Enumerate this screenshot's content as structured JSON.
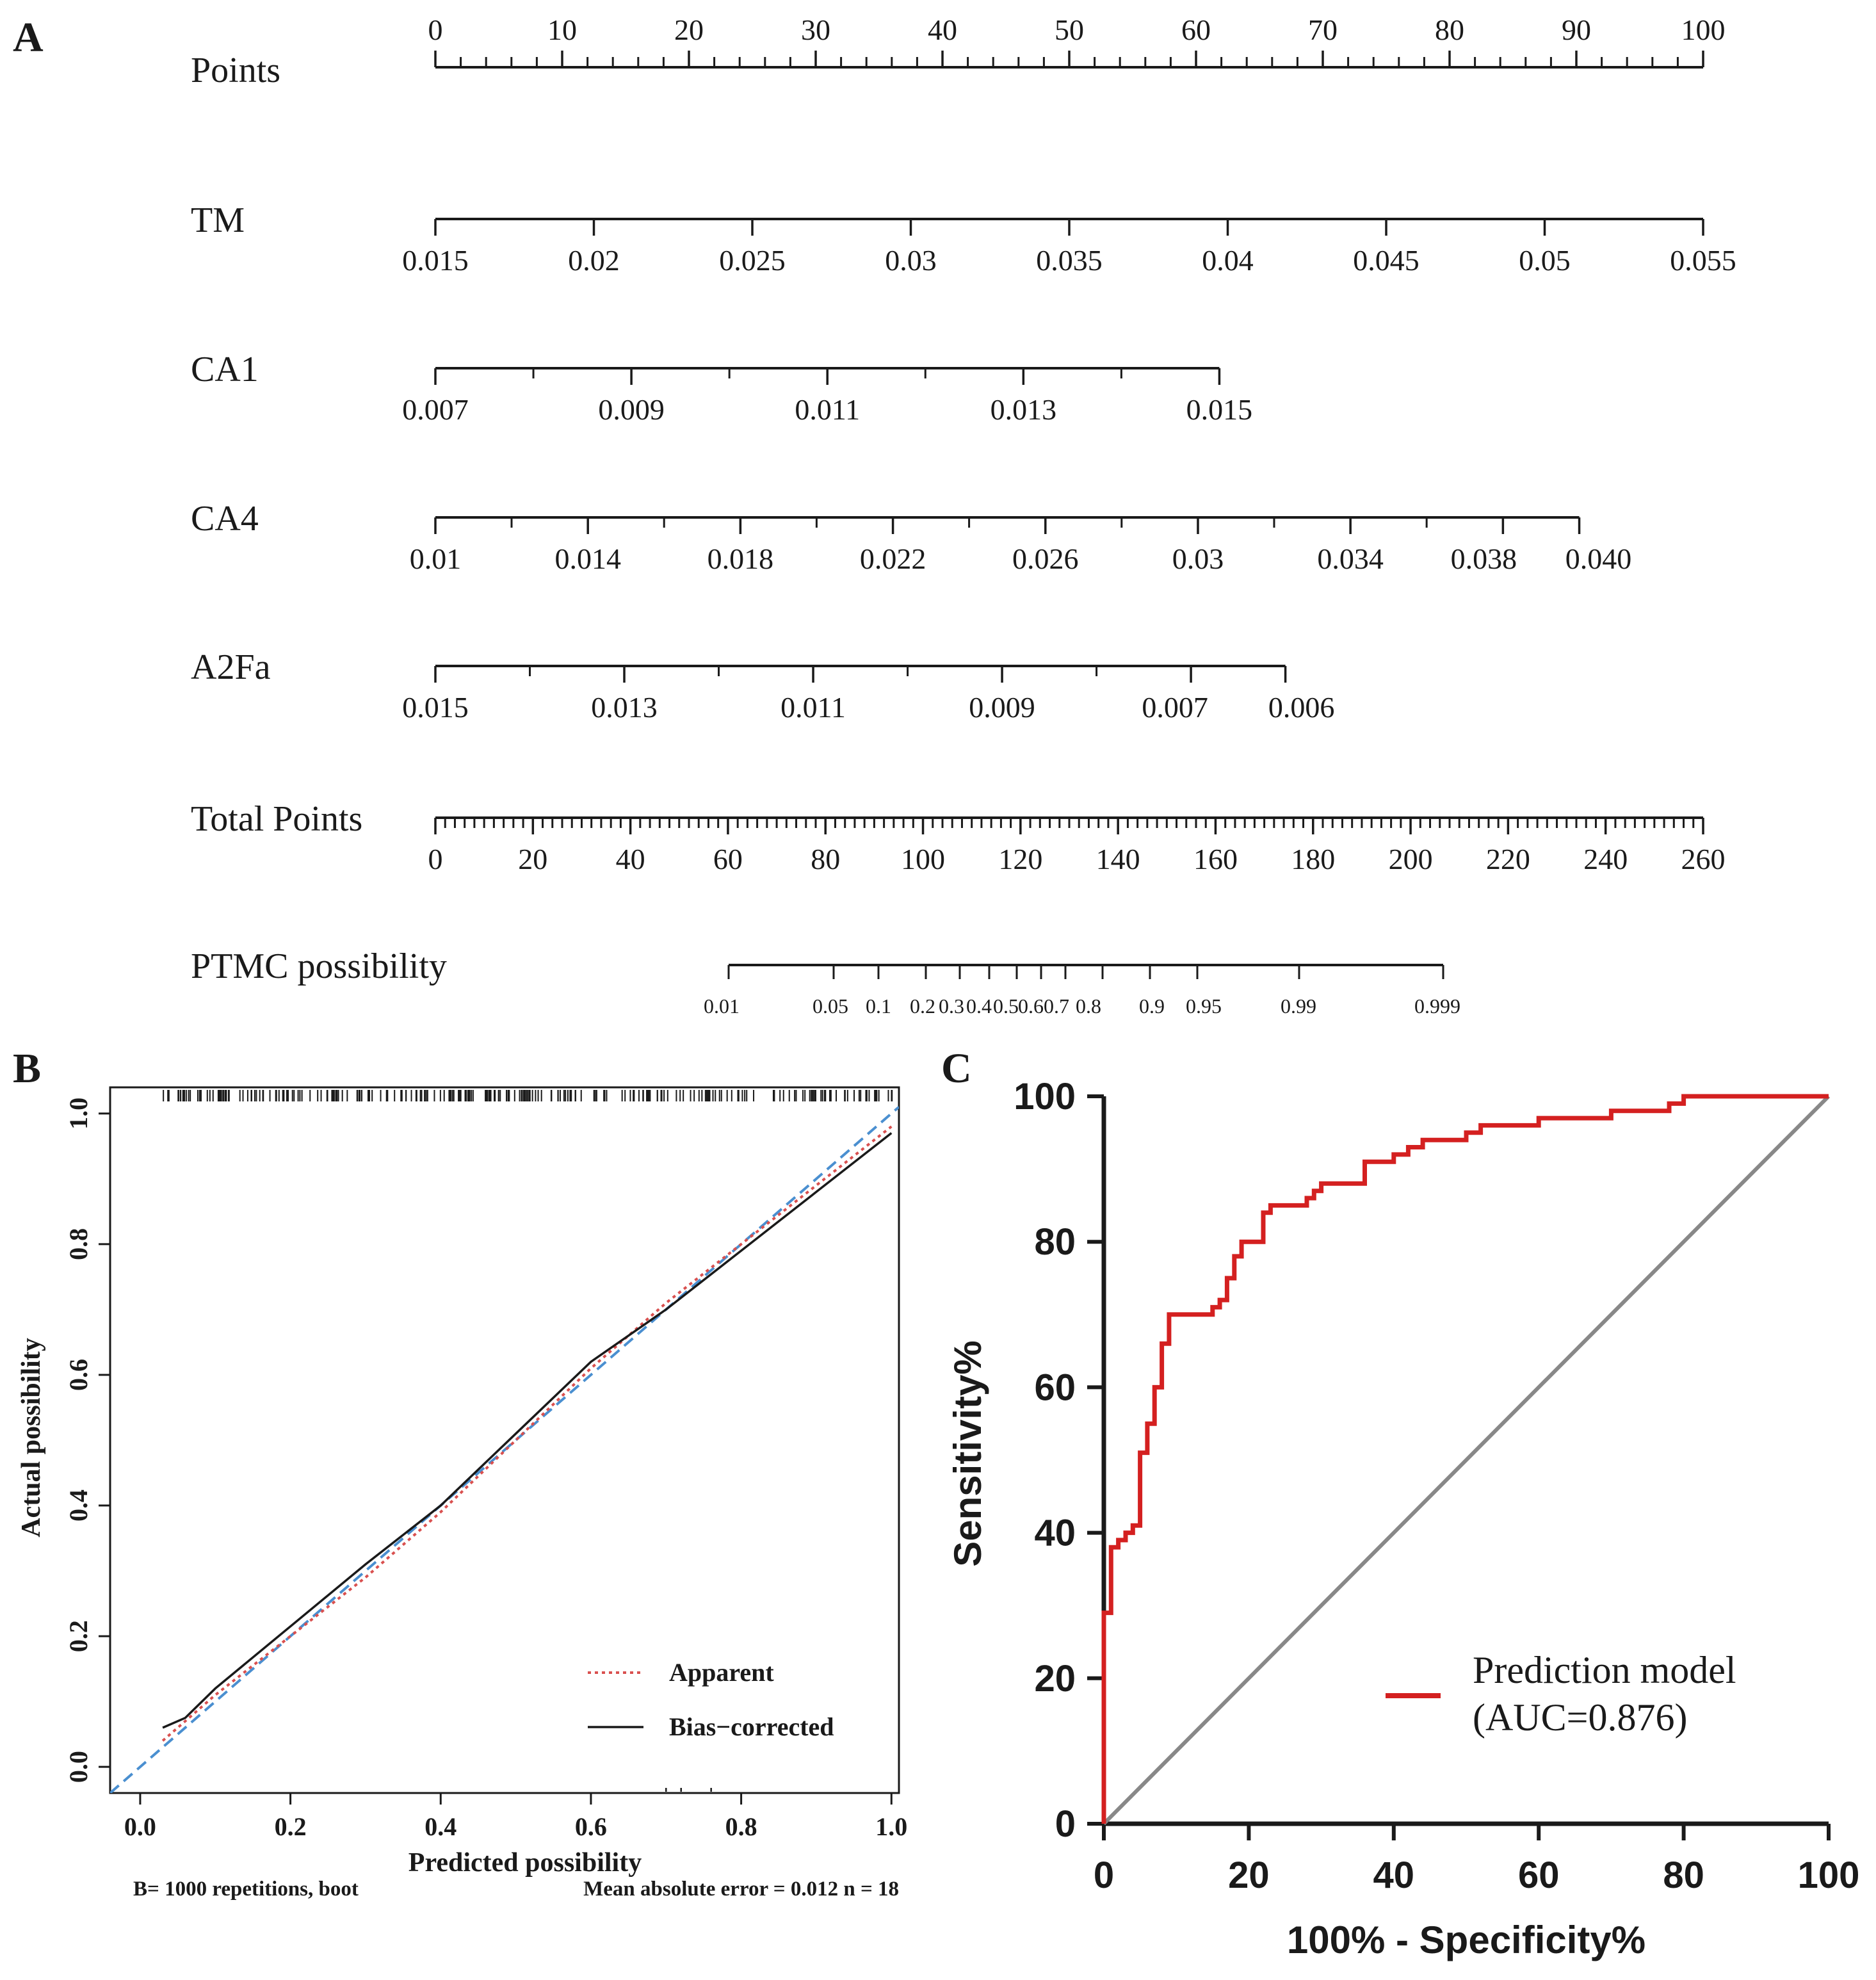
{
  "colors": {
    "ink": "#1a1a1a",
    "roc_line": "#d42020",
    "reference_line": "#888888",
    "apparent": "#d9504f",
    "ideal": "#4a8fd0"
  },
  "panel_labels": {
    "a": "A",
    "b": "B",
    "c": "C"
  },
  "chart_data": [
    {
      "type": "nomogram",
      "panel": "A",
      "scales": [
        {
          "name": "Points",
          "min": 0,
          "max": 100,
          "labels": [
            "0",
            "10",
            "20",
            "30",
            "40",
            "50",
            "60",
            "70",
            "80",
            "90",
            "100"
          ]
        },
        {
          "name": "TM",
          "labels": [
            "0.015",
            "0.02",
            "0.025",
            "0.03",
            "0.035",
            "0.04",
            "0.045",
            "0.05",
            "0.055"
          ]
        },
        {
          "name": "CA1",
          "labels": [
            "0.007",
            "0.009",
            "0.011",
            "0.013",
            "0.015"
          ]
        },
        {
          "name": "CA4",
          "labels": [
            "0.01",
            "0.014",
            "0.018",
            "0.022",
            "0.026",
            "0.03",
            "0.034",
            "0.038",
            "0.040"
          ]
        },
        {
          "name": "A2Fa",
          "labels": [
            "0.015",
            "0.013",
            "0.011",
            "0.009",
            "0.007",
            "0.006"
          ]
        },
        {
          "name": "Total Points",
          "min": 0,
          "max": 260,
          "labels": [
            "0",
            "20",
            "40",
            "60",
            "80",
            "100",
            "120",
            "140",
            "160",
            "180",
            "200",
            "220",
            "240",
            "260"
          ]
        },
        {
          "name": "PTMC possibility",
          "labels": [
            "0.01",
            "0.05",
            "0.1",
            "0.2",
            "0.3",
            "0.4",
            "0.5",
            "0.6",
            "0.7",
            "0.8",
            "0.9",
            "0.95",
            "0.99",
            "0.999"
          ]
        }
      ]
    },
    {
      "type": "line",
      "panel": "B",
      "xlabel": "Predicted possibility",
      "ylabel": "Actual possibility",
      "xlim": [
        -0.04,
        1.01
      ],
      "ylim": [
        -0.04,
        1.04
      ],
      "x_ticks": [
        "0.0",
        "0.2",
        "0.4",
        "0.6",
        "0.8",
        "1.0"
      ],
      "y_ticks": [
        "0.0",
        "0.2",
        "0.4",
        "0.6",
        "0.8",
        "1.0"
      ],
      "legend": [
        "Apparent",
        "Bias−corrected"
      ],
      "legend_position": "bottom-right",
      "footer_left": "B= 1000 repetitions, boot",
      "footer_right": "Mean absolute error = 0.012 n = 18",
      "series": [
        {
          "name": "Ideal",
          "x": [
            -0.04,
            1.01
          ],
          "y": [
            -0.04,
            1.01
          ]
        },
        {
          "name": "Apparent",
          "x": [
            0.03,
            0.1,
            0.2,
            0.3,
            0.4,
            0.5,
            0.6,
            0.7,
            0.8,
            0.9,
            1.0
          ],
          "y": [
            0.04,
            0.11,
            0.2,
            0.29,
            0.39,
            0.5,
            0.61,
            0.71,
            0.8,
            0.89,
            0.98
          ]
        },
        {
          "name": "Bias−corrected",
          "x": [
            0.03,
            0.06,
            0.1,
            0.2,
            0.3,
            0.4,
            0.5,
            0.6,
            0.7,
            0.8,
            0.9,
            1.0
          ],
          "y": [
            0.06,
            0.075,
            0.12,
            0.215,
            0.31,
            0.4,
            0.51,
            0.62,
            0.7,
            0.79,
            0.88,
            0.97
          ]
        }
      ]
    },
    {
      "type": "line",
      "panel": "C",
      "xlabel": "100% - Specificity%",
      "ylabel": "Sensitivity%",
      "xlim": [
        0,
        100
      ],
      "ylim": [
        0,
        100
      ],
      "x_ticks": [
        "0",
        "20",
        "40",
        "60",
        "80",
        "100"
      ],
      "y_ticks": [
        "0",
        "20",
        "40",
        "60",
        "80",
        "100"
      ],
      "legend": [
        "Prediction model",
        "(AUC=0.876)"
      ],
      "legend_position": "bottom-right",
      "series": [
        {
          "name": "Prediction model",
          "x": [
            0,
            0,
            1,
            1,
            2,
            2,
            3,
            3,
            4,
            4,
            5,
            5,
            6,
            6,
            7,
            7,
            8,
            8,
            9,
            9,
            10,
            10,
            15,
            15,
            16,
            16,
            17,
            17,
            18,
            18,
            19,
            19,
            20,
            20,
            22,
            22,
            23,
            23,
            24,
            24,
            28,
            28,
            29,
            29,
            30,
            30,
            32,
            32,
            36,
            36,
            40,
            40,
            42,
            42,
            44,
            44,
            48,
            48,
            50,
            50,
            52,
            52,
            60,
            60,
            70,
            70,
            78,
            78,
            80,
            80,
            100
          ],
          "y": [
            0,
            29,
            29,
            38,
            38,
            39,
            39,
            40,
            40,
            41,
            41,
            51,
            51,
            55,
            55,
            60,
            60,
            66,
            66,
            70,
            70,
            70,
            70,
            71,
            71,
            72,
            72,
            75,
            75,
            78,
            78,
            80,
            80,
            80,
            80,
            84,
            84,
            85,
            85,
            85,
            85,
            86,
            86,
            87,
            87,
            88,
            88,
            88,
            88,
            91,
            91,
            92,
            92,
            93,
            93,
            94,
            94,
            94,
            94,
            95,
            95,
            96,
            96,
            97,
            97,
            98,
            98,
            99,
            99,
            100,
            100
          ]
        },
        {
          "name": "Reference",
          "x": [
            0,
            100
          ],
          "y": [
            0,
            100
          ]
        }
      ]
    }
  ]
}
